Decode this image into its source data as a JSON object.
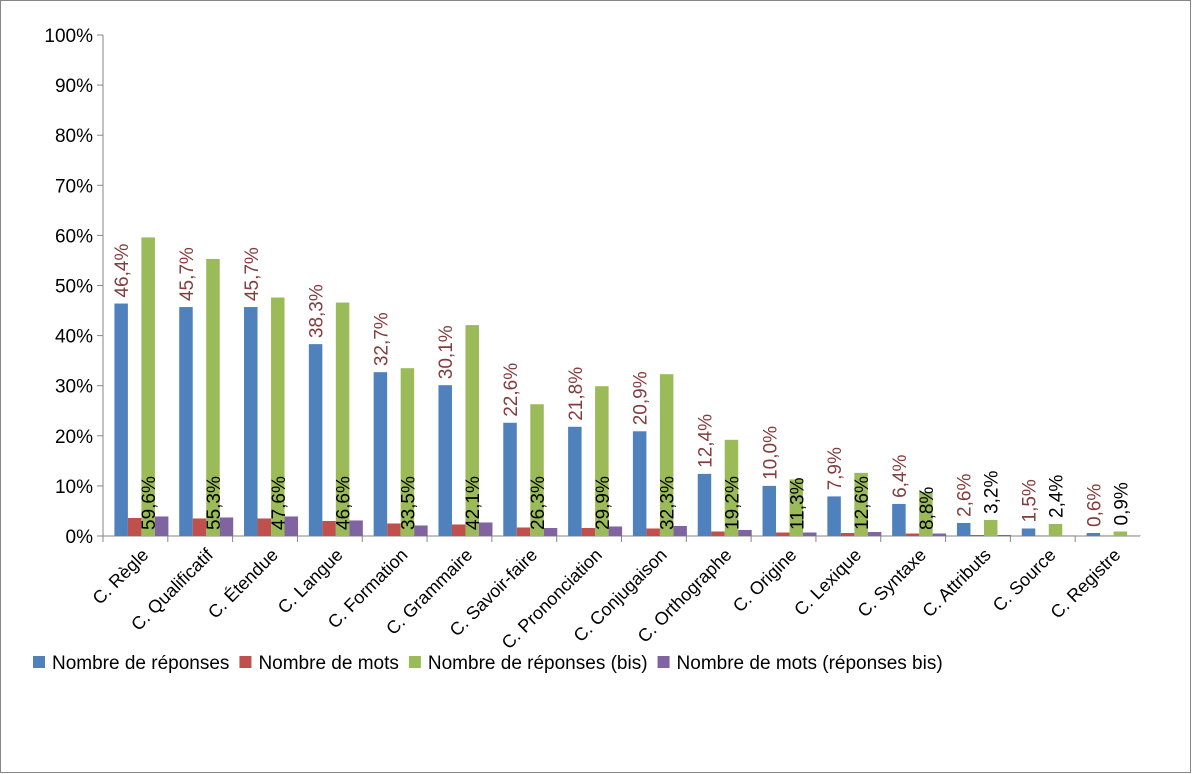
{
  "chart_data": {
    "type": "bar",
    "categories": [
      "C. Règle",
      "C. Qualificatif",
      "C. Étendue",
      "C. Langue",
      "C. Formation",
      "C. Grammaire",
      "C. Savoir-faire",
      "C. Prononciation",
      "C. Conjugaison",
      "C. Orthographe",
      "C. Origine",
      "C. Lexique",
      "C. Syntaxe",
      "C. Attributs",
      "C. Source",
      "C. Registre"
    ],
    "series": [
      {
        "name": "Nombre de réponses",
        "color": "#4f81bd",
        "label_color": "#833c3c",
        "values": [
          46.4,
          45.7,
          45.7,
          38.3,
          32.7,
          30.1,
          22.6,
          21.8,
          20.9,
          12.4,
          10.0,
          7.9,
          6.4,
          2.6,
          1.5,
          0.6
        ],
        "value_labels": [
          "46,4%",
          "45,7%",
          "45,7%",
          "38,3%",
          "32,7%",
          "30,1%",
          "22,6%",
          "21,8%",
          "20,9%",
          "12,4%",
          "10,0%",
          "7,9%",
          "6,4%",
          "2,6%",
          "1,5%",
          "0,6%"
        ]
      },
      {
        "name": "Nombre de mots",
        "color": "#c0504d",
        "values": [
          3.6,
          3.5,
          3.5,
          3.0,
          2.5,
          2.3,
          1.7,
          1.6,
          1.5,
          0.9,
          0.7,
          0.6,
          0.5,
          0.2,
          0.1,
          0.1
        ]
      },
      {
        "name": "Nombre de réponses (bis)",
        "color": "#9bbb59",
        "label_color": "#000000",
        "values": [
          59.6,
          55.3,
          47.6,
          46.6,
          33.5,
          42.1,
          26.3,
          29.9,
          32.3,
          19.2,
          11.3,
          12.6,
          8.8,
          3.2,
          2.4,
          0.9
        ],
        "value_labels": [
          "59,6%",
          "55,3%",
          "47,6%",
          "46,6%",
          "33,5%",
          "42,1%",
          "26,3%",
          "29,9%",
          "32,3%",
          "19,2%",
          "11,3%",
          "12,6%",
          "8,8%",
          "3,2%",
          "2,4%",
          "0,9%"
        ]
      },
      {
        "name": "Nombre de mots (réponses bis)",
        "color": "#8064a2",
        "values": [
          3.9,
          3.7,
          3.9,
          3.1,
          2.1,
          2.7,
          1.6,
          1.9,
          2.0,
          1.2,
          0.7,
          0.8,
          0.5,
          0.2,
          0.1,
          0.1
        ]
      }
    ],
    "ylim": [
      0,
      100
    ],
    "yticks": [
      {
        "value": 0,
        "label": "0%"
      },
      {
        "value": 10,
        "label": "10%"
      },
      {
        "value": 20,
        "label": "20%"
      },
      {
        "value": 30,
        "label": "30%"
      },
      {
        "value": 40,
        "label": "40%"
      },
      {
        "value": 50,
        "label": "50%"
      },
      {
        "value": 60,
        "label": "60%"
      },
      {
        "value": 70,
        "label": "70%"
      },
      {
        "value": 80,
        "label": "80%"
      },
      {
        "value": 90,
        "label": "90%"
      },
      {
        "value": 100,
        "label": "100%"
      }
    ],
    "grid": false,
    "legend": "bottom"
  }
}
